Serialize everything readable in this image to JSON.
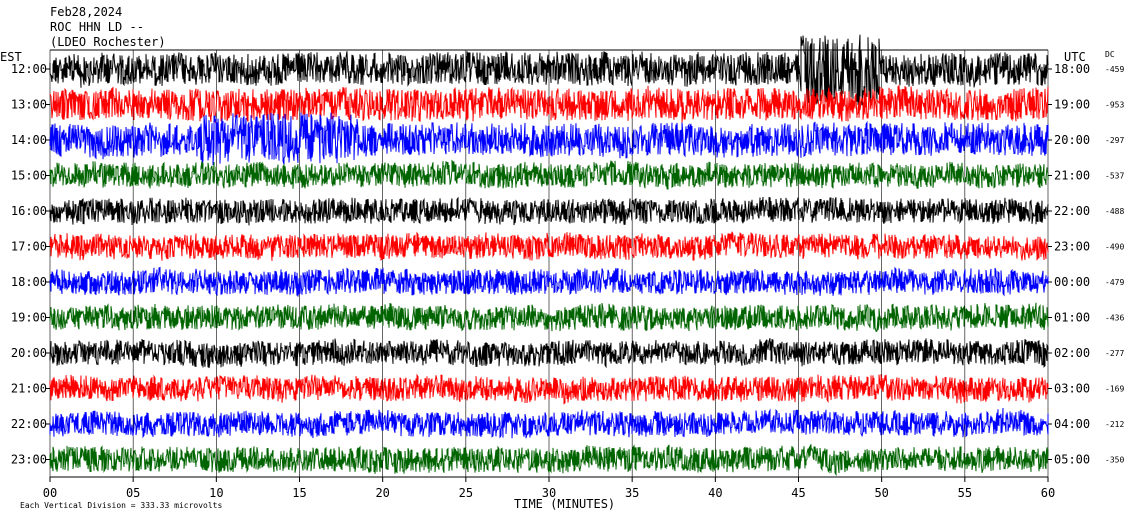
{
  "header": {
    "date": "Feb28,2024",
    "station": "ROC HHN LD --",
    "location": "(LDEO Rochester)"
  },
  "chart_data": {
    "type": "line",
    "title": "",
    "xlabel": "TIME (MINUTES)",
    "left_axis_label": "EST",
    "right_axis_label": "UTC",
    "dc_label": "DC",
    "xlim": [
      0,
      60
    ],
    "x_ticks": [
      "00",
      "05",
      "10",
      "15",
      "20",
      "25",
      "30",
      "35",
      "40",
      "45",
      "50",
      "55",
      "60"
    ],
    "grid": "vertical lines every 5 minutes",
    "scale_note": "Each Vertical Division =  333.33 microvolts",
    "trace_colors": [
      "#000000",
      "#ff0000",
      "#0000ff",
      "#006400"
    ],
    "rows": [
      {
        "est": "12:00",
        "utc": "18:00",
        "dc": "-459"
      },
      {
        "est": "13:00",
        "utc": "19:00",
        "dc": "-953"
      },
      {
        "est": "14:00",
        "utc": "20:00",
        "dc": "-297"
      },
      {
        "est": "15:00",
        "utc": "21:00",
        "dc": "-537"
      },
      {
        "est": "16:00",
        "utc": "22:00",
        "dc": "-488"
      },
      {
        "est": "17:00",
        "utc": "23:00",
        "dc": "-490"
      },
      {
        "est": "18:00",
        "utc": "00:00",
        "dc": "-479"
      },
      {
        "est": "19:00",
        "utc": "01:00",
        "dc": "-436"
      },
      {
        "est": "20:00",
        "utc": "02:00",
        "dc": "-277"
      },
      {
        "est": "21:00",
        "utc": "03:00",
        "dc": "-169"
      },
      {
        "est": "22:00",
        "utc": "04:00",
        "dc": "-212"
      },
      {
        "est": "23:00",
        "utc": "05:00",
        "dc": "-350"
      }
    ]
  }
}
